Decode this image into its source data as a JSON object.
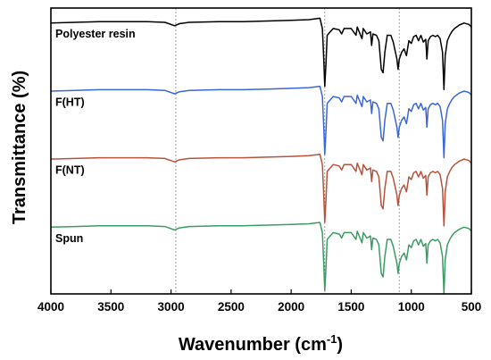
{
  "chart_data": {
    "type": "line",
    "xlabel": "Wavenumber (cm",
    "xlabel_sup": "-1",
    "xlabel_end": ")",
    "ylabel": "Transmittance (%)",
    "xlim": [
      4000,
      500
    ],
    "x_reversed": true,
    "x_ticks": [
      4000,
      3500,
      3000,
      2500,
      2000,
      1500,
      1000,
      500
    ],
    "reference_lines_x": [
      2960,
      1720,
      1100
    ],
    "ylim": [
      0,
      4.2
    ],
    "y_ticks_shown": false,
    "legend": "inline labels at left",
    "series": [
      {
        "name": "Polyester resin",
        "color": "#000000",
        "offset": 3,
        "points": [
          [
            4000,
            0.98
          ],
          [
            3800,
            0.99
          ],
          [
            3600,
            1
          ],
          [
            3400,
            1
          ],
          [
            3200,
            1
          ],
          [
            3050,
            0.99
          ],
          [
            2970,
            0.94
          ],
          [
            2930,
            0.97
          ],
          [
            2850,
            0.99
          ],
          [
            2600,
            1
          ],
          [
            2400,
            1
          ],
          [
            2200,
            1.01
          ],
          [
            2000,
            1.02
          ],
          [
            1850,
            1.03
          ],
          [
            1760,
            1.05
          ],
          [
            1740,
            0.9
          ],
          [
            1730,
            0.5
          ],
          [
            1720,
            0.05
          ],
          [
            1710,
            0.4
          ],
          [
            1700,
            0.8
          ],
          [
            1650,
            0.9
          ],
          [
            1600,
            0.88
          ],
          [
            1580,
            0.82
          ],
          [
            1560,
            0.9
          ],
          [
            1500,
            0.9
          ],
          [
            1460,
            0.8
          ],
          [
            1450,
            0.92
          ],
          [
            1410,
            0.75
          ],
          [
            1400,
            0.9
          ],
          [
            1370,
            0.82
          ],
          [
            1340,
            0.85
          ],
          [
            1330,
            0.65
          ],
          [
            1320,
            0.82
          ],
          [
            1290,
            0.8
          ],
          [
            1270,
            0.72
          ],
          [
            1250,
            0.3
          ],
          [
            1235,
            0.25
          ],
          [
            1220,
            0.55
          ],
          [
            1200,
            0.8
          ],
          [
            1170,
            0.8
          ],
          [
            1150,
            0.7
          ],
          [
            1120,
            0.45
          ],
          [
            1110,
            0.3
          ],
          [
            1100,
            0.45
          ],
          [
            1080,
            0.55
          ],
          [
            1060,
            0.6
          ],
          [
            1040,
            0.5
          ],
          [
            1020,
            0.72
          ],
          [
            1000,
            0.68
          ],
          [
            980,
            0.78
          ],
          [
            960,
            0.8
          ],
          [
            940,
            0.72
          ],
          [
            920,
            0.8
          ],
          [
            900,
            0.7
          ],
          [
            880,
            0.74
          ],
          [
            870,
            0.45
          ],
          [
            860,
            0.72
          ],
          [
            840,
            0.78
          ],
          [
            820,
            0.8
          ],
          [
            800,
            0.78
          ],
          [
            780,
            0.8
          ],
          [
            760,
            0.75
          ],
          [
            740,
            0.55
          ],
          [
            728,
            0
          ],
          [
            718,
            0.5
          ],
          [
            700,
            0.72
          ],
          [
            680,
            0.8
          ],
          [
            660,
            0.86
          ],
          [
            640,
            0.9
          ],
          [
            600,
            0.95
          ],
          [
            560,
            0.98
          ],
          [
            520,
            0.96
          ],
          [
            500,
            0.92
          ]
        ]
      },
      {
        "name": "F(HT)",
        "color": "#3a66d8",
        "offset": 2,
        "points": [
          [
            4000,
            0.98
          ],
          [
            3800,
            0.99
          ],
          [
            3600,
            1
          ],
          [
            3400,
            1
          ],
          [
            3200,
            1
          ],
          [
            3050,
            0.99
          ],
          [
            2970,
            0.94
          ],
          [
            2930,
            0.97
          ],
          [
            2850,
            0.99
          ],
          [
            2600,
            1
          ],
          [
            2400,
            1
          ],
          [
            2200,
            1.01
          ],
          [
            2000,
            1.02
          ],
          [
            1850,
            1.03
          ],
          [
            1760,
            1.05
          ],
          [
            1740,
            0.9
          ],
          [
            1730,
            0.5
          ],
          [
            1720,
            0.05
          ],
          [
            1710,
            0.4
          ],
          [
            1700,
            0.8
          ],
          [
            1650,
            0.9
          ],
          [
            1600,
            0.88
          ],
          [
            1580,
            0.82
          ],
          [
            1560,
            0.9
          ],
          [
            1500,
            0.9
          ],
          [
            1460,
            0.8
          ],
          [
            1450,
            0.92
          ],
          [
            1410,
            0.75
          ],
          [
            1400,
            0.9
          ],
          [
            1370,
            0.82
          ],
          [
            1340,
            0.85
          ],
          [
            1330,
            0.65
          ],
          [
            1320,
            0.82
          ],
          [
            1290,
            0.8
          ],
          [
            1270,
            0.72
          ],
          [
            1250,
            0.3
          ],
          [
            1235,
            0.25
          ],
          [
            1220,
            0.55
          ],
          [
            1200,
            0.8
          ],
          [
            1170,
            0.8
          ],
          [
            1150,
            0.7
          ],
          [
            1120,
            0.45
          ],
          [
            1110,
            0.3
          ],
          [
            1100,
            0.45
          ],
          [
            1080,
            0.55
          ],
          [
            1060,
            0.6
          ],
          [
            1040,
            0.5
          ],
          [
            1020,
            0.72
          ],
          [
            1000,
            0.68
          ],
          [
            980,
            0.78
          ],
          [
            960,
            0.8
          ],
          [
            940,
            0.72
          ],
          [
            920,
            0.8
          ],
          [
            900,
            0.7
          ],
          [
            880,
            0.74
          ],
          [
            870,
            0.45
          ],
          [
            860,
            0.72
          ],
          [
            840,
            0.78
          ],
          [
            820,
            0.8
          ],
          [
            800,
            0.78
          ],
          [
            780,
            0.8
          ],
          [
            760,
            0.75
          ],
          [
            740,
            0.55
          ],
          [
            728,
            0
          ],
          [
            718,
            0.5
          ],
          [
            700,
            0.72
          ],
          [
            680,
            0.8
          ],
          [
            660,
            0.86
          ],
          [
            640,
            0.9
          ],
          [
            600,
            0.95
          ],
          [
            560,
            0.98
          ],
          [
            520,
            0.96
          ],
          [
            500,
            0.92
          ]
        ]
      },
      {
        "name": "F(NT)",
        "color": "#b5533c",
        "offset": 1,
        "points": [
          [
            4000,
            0.98
          ],
          [
            3800,
            0.99
          ],
          [
            3600,
            1
          ],
          [
            3400,
            1
          ],
          [
            3200,
            1
          ],
          [
            3050,
            0.99
          ],
          [
            2970,
            0.94
          ],
          [
            2930,
            0.97
          ],
          [
            2850,
            0.99
          ],
          [
            2600,
            1
          ],
          [
            2400,
            1
          ],
          [
            2200,
            1.01
          ],
          [
            2000,
            1.02
          ],
          [
            1850,
            1.03
          ],
          [
            1760,
            1.05
          ],
          [
            1740,
            0.9
          ],
          [
            1730,
            0.5
          ],
          [
            1720,
            0.05
          ],
          [
            1710,
            0.4
          ],
          [
            1700,
            0.8
          ],
          [
            1650,
            0.9
          ],
          [
            1600,
            0.88
          ],
          [
            1580,
            0.82
          ],
          [
            1560,
            0.9
          ],
          [
            1500,
            0.9
          ],
          [
            1460,
            0.8
          ],
          [
            1450,
            0.92
          ],
          [
            1410,
            0.75
          ],
          [
            1400,
            0.9
          ],
          [
            1370,
            0.82
          ],
          [
            1340,
            0.85
          ],
          [
            1330,
            0.65
          ],
          [
            1320,
            0.82
          ],
          [
            1290,
            0.8
          ],
          [
            1270,
            0.72
          ],
          [
            1250,
            0.3
          ],
          [
            1235,
            0.25
          ],
          [
            1220,
            0.55
          ],
          [
            1200,
            0.8
          ],
          [
            1170,
            0.8
          ],
          [
            1150,
            0.7
          ],
          [
            1120,
            0.45
          ],
          [
            1110,
            0.3
          ],
          [
            1100,
            0.45
          ],
          [
            1080,
            0.55
          ],
          [
            1060,
            0.6
          ],
          [
            1040,
            0.5
          ],
          [
            1020,
            0.72
          ],
          [
            1000,
            0.68
          ],
          [
            980,
            0.78
          ],
          [
            960,
            0.8
          ],
          [
            940,
            0.72
          ],
          [
            920,
            0.8
          ],
          [
            900,
            0.7
          ],
          [
            880,
            0.74
          ],
          [
            870,
            0.45
          ],
          [
            860,
            0.72
          ],
          [
            840,
            0.78
          ],
          [
            820,
            0.8
          ],
          [
            800,
            0.78
          ],
          [
            780,
            0.8
          ],
          [
            760,
            0.75
          ],
          [
            740,
            0.55
          ],
          [
            728,
            0
          ],
          [
            718,
            0.5
          ],
          [
            700,
            0.72
          ],
          [
            680,
            0.8
          ],
          [
            660,
            0.86
          ],
          [
            640,
            0.9
          ],
          [
            600,
            0.95
          ],
          [
            560,
            0.98
          ],
          [
            520,
            0.96
          ],
          [
            500,
            0.92
          ]
        ]
      },
      {
        "name": "Spun",
        "color": "#3c9b63",
        "offset": 0,
        "points": [
          [
            4000,
            0.98
          ],
          [
            3800,
            0.99
          ],
          [
            3600,
            1
          ],
          [
            3400,
            1
          ],
          [
            3200,
            1
          ],
          [
            3050,
            0.99
          ],
          [
            2970,
            0.94
          ],
          [
            2930,
            0.97
          ],
          [
            2850,
            0.99
          ],
          [
            2600,
            1
          ],
          [
            2400,
            1
          ],
          [
            2200,
            1.01
          ],
          [
            2000,
            1.02
          ],
          [
            1850,
            1.03
          ],
          [
            1760,
            1.05
          ],
          [
            1740,
            0.9
          ],
          [
            1730,
            0.5
          ],
          [
            1720,
            0.05
          ],
          [
            1710,
            0.4
          ],
          [
            1700,
            0.8
          ],
          [
            1650,
            0.9
          ],
          [
            1600,
            0.88
          ],
          [
            1580,
            0.82
          ],
          [
            1560,
            0.9
          ],
          [
            1500,
            0.9
          ],
          [
            1460,
            0.8
          ],
          [
            1450,
            0.92
          ],
          [
            1410,
            0.75
          ],
          [
            1400,
            0.9
          ],
          [
            1370,
            0.82
          ],
          [
            1340,
            0.85
          ],
          [
            1330,
            0.65
          ],
          [
            1320,
            0.82
          ],
          [
            1290,
            0.8
          ],
          [
            1270,
            0.72
          ],
          [
            1250,
            0.3
          ],
          [
            1235,
            0.25
          ],
          [
            1220,
            0.55
          ],
          [
            1200,
            0.8
          ],
          [
            1170,
            0.8
          ],
          [
            1150,
            0.7
          ],
          [
            1120,
            0.45
          ],
          [
            1110,
            0.3
          ],
          [
            1100,
            0.45
          ],
          [
            1080,
            0.55
          ],
          [
            1060,
            0.6
          ],
          [
            1040,
            0.5
          ],
          [
            1020,
            0.72
          ],
          [
            1000,
            0.68
          ],
          [
            980,
            0.78
          ],
          [
            960,
            0.8
          ],
          [
            940,
            0.72
          ],
          [
            920,
            0.8
          ],
          [
            900,
            0.7
          ],
          [
            880,
            0.74
          ],
          [
            870,
            0.45
          ],
          [
            860,
            0.72
          ],
          [
            840,
            0.78
          ],
          [
            820,
            0.8
          ],
          [
            800,
            0.78
          ],
          [
            780,
            0.8
          ],
          [
            760,
            0.75
          ],
          [
            740,
            0.55
          ],
          [
            728,
            0
          ],
          [
            718,
            0.5
          ],
          [
            700,
            0.72
          ],
          [
            680,
            0.8
          ],
          [
            660,
            0.86
          ],
          [
            640,
            0.9
          ],
          [
            600,
            0.95
          ],
          [
            560,
            0.98
          ],
          [
            520,
            0.96
          ],
          [
            500,
            0.92
          ]
        ]
      }
    ]
  }
}
